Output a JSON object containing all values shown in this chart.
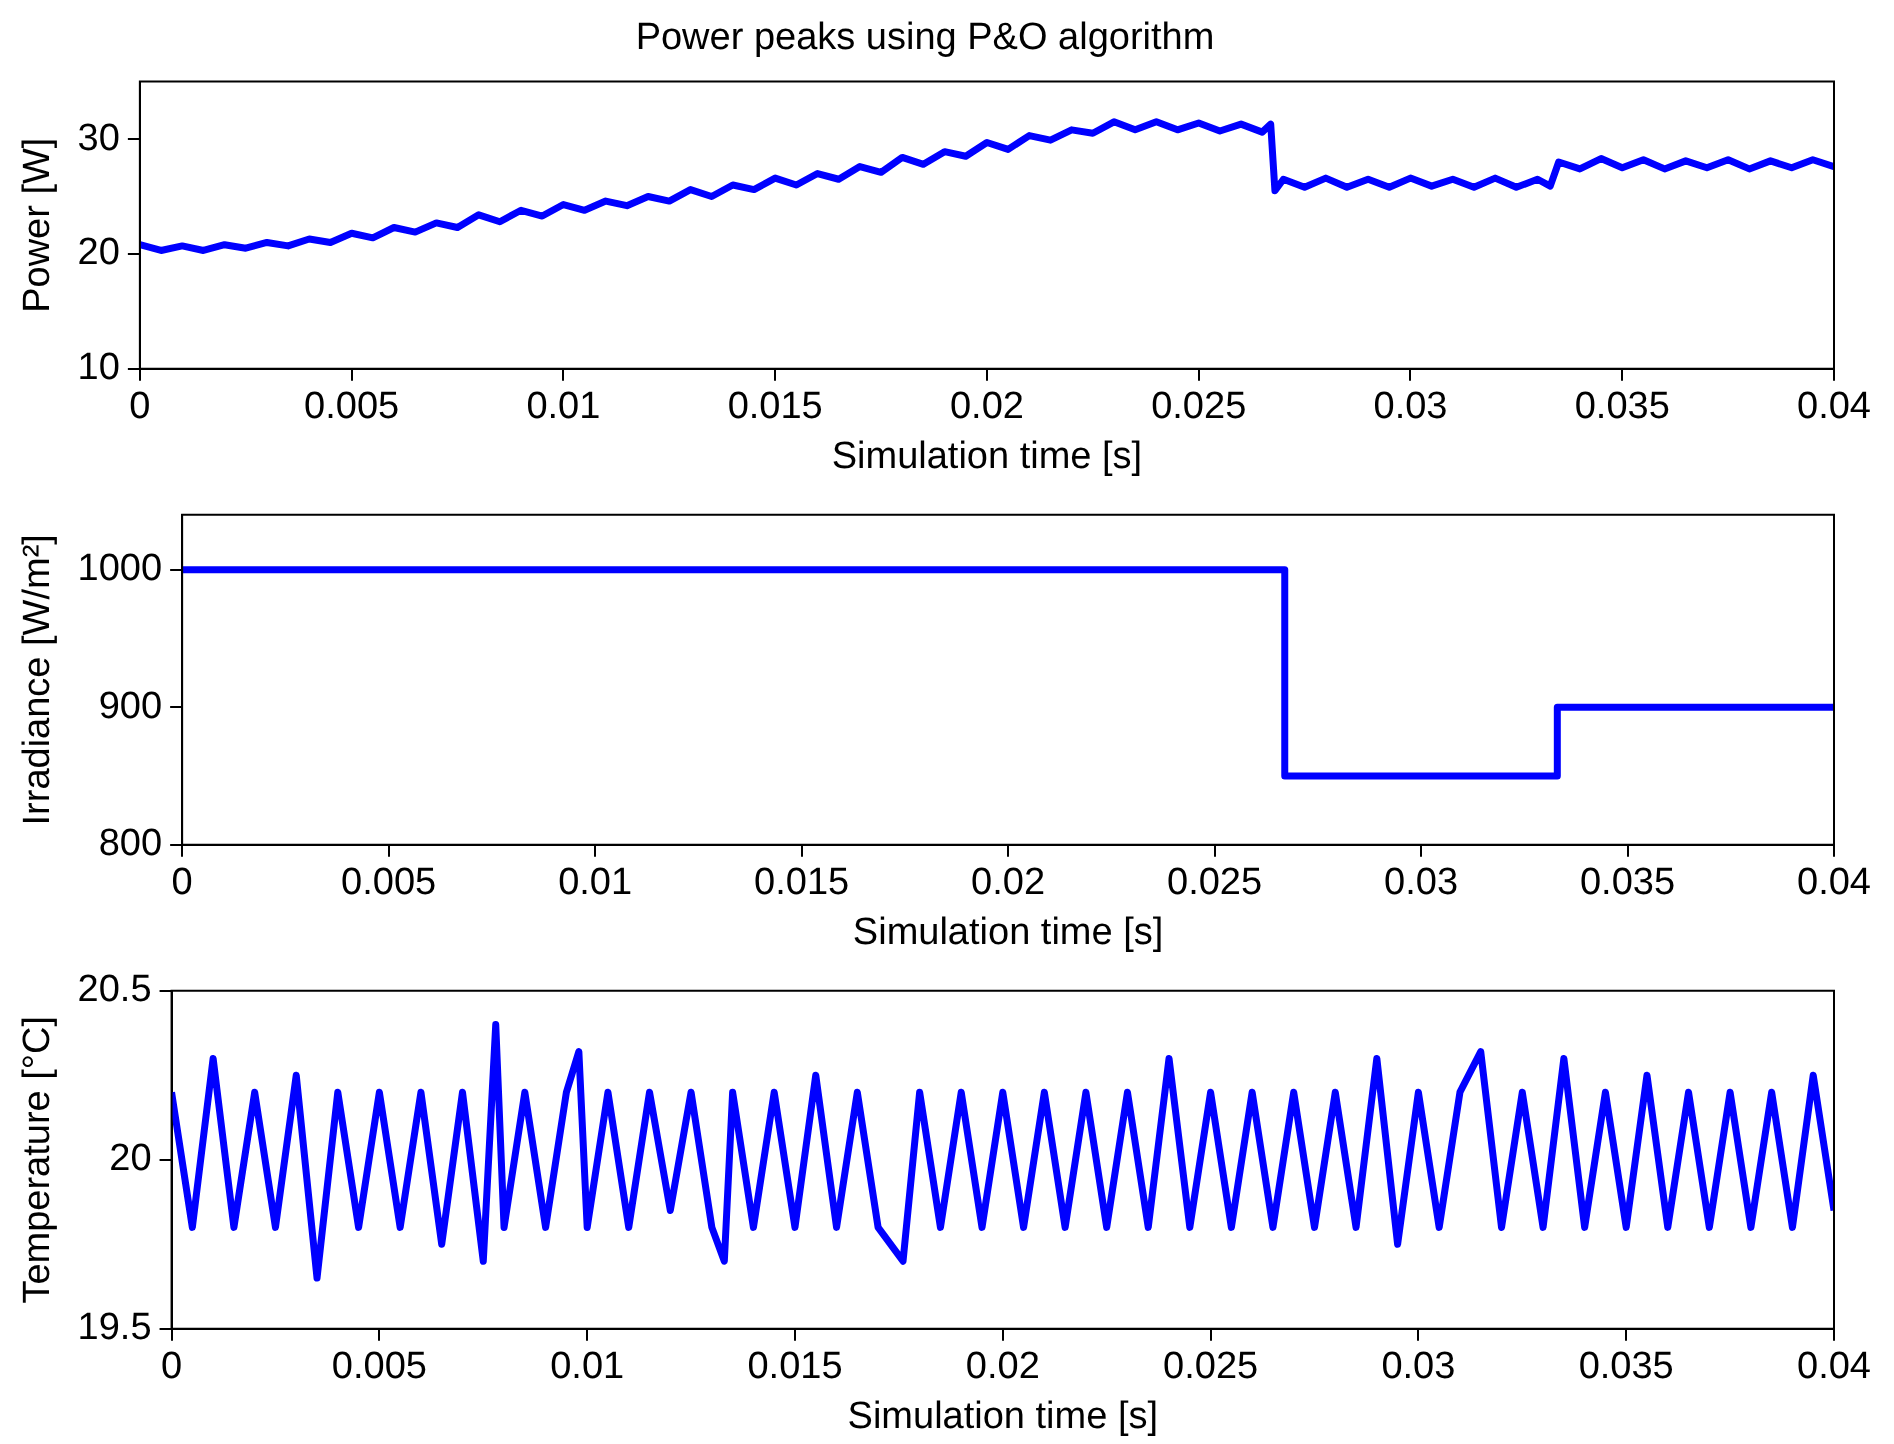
{
  "chart_data": [
    {
      "type": "line",
      "title": "Power peaks using P&O algorithm",
      "xlabel": "Simulation time [s]",
      "ylabel": "Power [W]",
      "xlim": [
        0,
        0.04
      ],
      "xticks": [
        0,
        0.005,
        0.01,
        0.015,
        0.02,
        0.025,
        0.03,
        0.035,
        0.04
      ],
      "ylim": [
        10,
        35
      ],
      "yticks": [
        10,
        20,
        30
      ],
      "grid": false,
      "legend": false,
      "marker": "none",
      "line_style": "solid",
      "series": [
        {
          "color": "#0000ff",
          "x": [
            0,
            0.0005,
            0.001,
            0.0015,
            0.002,
            0.0025,
            0.003,
            0.0035,
            0.004,
            0.0045,
            0.005,
            0.0055,
            0.006,
            0.0065,
            0.007,
            0.0075,
            0.008,
            0.0085,
            0.009,
            0.0095,
            0.01,
            0.0105,
            0.011,
            0.0115,
            0.012,
            0.0125,
            0.013,
            0.0135,
            0.014,
            0.0145,
            0.015,
            0.0155,
            0.016,
            0.0165,
            0.017,
            0.0175,
            0.018,
            0.0185,
            0.019,
            0.0195,
            0.02,
            0.0205,
            0.021,
            0.0215,
            0.022,
            0.0225,
            0.023,
            0.0235,
            0.024,
            0.0245,
            0.025,
            0.0255,
            0.026,
            0.0265,
            0.0267,
            0.0268,
            0.027,
            0.0275,
            0.028,
            0.0285,
            0.029,
            0.0295,
            0.03,
            0.0305,
            0.031,
            0.0315,
            0.032,
            0.0325,
            0.033,
            0.0333,
            0.0335,
            0.034,
            0.0345,
            0.035,
            0.0355,
            0.036,
            0.0365,
            0.037,
            0.0375,
            0.038,
            0.0385,
            0.039,
            0.0395,
            0.04
          ],
          "values": [
            20.8,
            20.3,
            20.7,
            20.3,
            20.8,
            20.5,
            21.0,
            20.7,
            21.3,
            21.0,
            21.8,
            21.4,
            22.3,
            21.9,
            22.7,
            22.3,
            23.4,
            22.8,
            23.8,
            23.3,
            24.3,
            23.8,
            24.6,
            24.2,
            25.0,
            24.6,
            25.6,
            25.0,
            26.0,
            25.6,
            26.6,
            26.0,
            27.0,
            26.5,
            27.6,
            27.1,
            28.4,
            27.8,
            28.9,
            28.5,
            29.7,
            29.1,
            30.3,
            29.9,
            30.8,
            30.5,
            31.5,
            30.8,
            31.5,
            30.8,
            31.4,
            30.7,
            31.3,
            30.6,
            31.3,
            25.5,
            26.5,
            25.8,
            26.6,
            25.8,
            26.5,
            25.8,
            26.6,
            25.9,
            26.5,
            25.8,
            26.6,
            25.8,
            26.5,
            25.9,
            28.0,
            27.4,
            28.3,
            27.5,
            28.2,
            27.4,
            28.1,
            27.5,
            28.2,
            27.4,
            28.1,
            27.5,
            28.2,
            27.6
          ]
        }
      ]
    },
    {
      "type": "line",
      "xlabel": "Simulation time [s]",
      "ylabel": "Irradiance [W/m²]",
      "xlim": [
        0,
        0.04
      ],
      "xticks": [
        0,
        0.005,
        0.01,
        0.015,
        0.02,
        0.025,
        0.03,
        0.035,
        0.04
      ],
      "ylim": [
        800,
        1040
      ],
      "yticks": [
        800,
        900,
        1000
      ],
      "grid": false,
      "legend": false,
      "marker": "none",
      "line_style": "solid",
      "series": [
        {
          "color": "#0000ff",
          "x": [
            0,
            0.0267,
            0.0267,
            0.0333,
            0.0333,
            0.04
          ],
          "values": [
            1000,
            1000,
            850,
            850,
            900,
            900
          ]
        }
      ]
    },
    {
      "type": "line",
      "xlabel": "Simulation time [s]",
      "ylabel": "Temperature [°C]",
      "xlim": [
        0,
        0.04
      ],
      "xticks": [
        0,
        0.005,
        0.01,
        0.015,
        0.02,
        0.025,
        0.03,
        0.035,
        0.04
      ],
      "ylim": [
        19.5,
        20.5
      ],
      "yticks": [
        19.5,
        20,
        20.5
      ],
      "grid": false,
      "legend": false,
      "marker": "none",
      "line_style": "solid",
      "series": [
        {
          "color": "#0000ff",
          "x": [
            0,
            0.0005,
            0.001,
            0.0015,
            0.002,
            0.0025,
            0.003,
            0.0035,
            0.004,
            0.0045,
            0.005,
            0.0055,
            0.006,
            0.0065,
            0.007,
            0.0075,
            0.0078,
            0.008,
            0.0085,
            0.009,
            0.0095,
            0.0098,
            0.01,
            0.0105,
            0.011,
            0.0115,
            0.012,
            0.0125,
            0.013,
            0.0133,
            0.0135,
            0.014,
            0.0145,
            0.015,
            0.0155,
            0.016,
            0.0165,
            0.017,
            0.0176,
            0.018,
            0.0185,
            0.019,
            0.0195,
            0.02,
            0.0205,
            0.021,
            0.0215,
            0.022,
            0.0225,
            0.023,
            0.0235,
            0.024,
            0.0245,
            0.025,
            0.0255,
            0.026,
            0.0265,
            0.027,
            0.0275,
            0.028,
            0.0285,
            0.029,
            0.0295,
            0.03,
            0.0305,
            0.031,
            0.0315,
            0.032,
            0.0325,
            0.033,
            0.0335,
            0.034,
            0.0345,
            0.035,
            0.0355,
            0.036,
            0.0365,
            0.037,
            0.0375,
            0.038,
            0.0385,
            0.039,
            0.0395,
            0.04
          ],
          "values": [
            20.2,
            19.8,
            20.3,
            19.8,
            20.2,
            19.8,
            20.25,
            19.65,
            20.2,
            19.8,
            20.2,
            19.8,
            20.2,
            19.75,
            20.2,
            19.7,
            20.4,
            19.8,
            20.2,
            19.8,
            20.2,
            20.32,
            19.8,
            20.2,
            19.8,
            20.2,
            19.85,
            20.2,
            19.8,
            19.7,
            20.2,
            19.8,
            20.2,
            19.8,
            20.25,
            19.8,
            20.2,
            19.8,
            19.7,
            20.2,
            19.8,
            20.2,
            19.8,
            20.2,
            19.8,
            20.2,
            19.8,
            20.2,
            19.8,
            20.2,
            19.8,
            20.3,
            19.8,
            20.2,
            19.8,
            20.2,
            19.8,
            20.2,
            19.8,
            20.2,
            19.8,
            20.3,
            19.75,
            20.2,
            19.8,
            20.2,
            20.32,
            19.8,
            20.2,
            19.8,
            20.3,
            19.8,
            20.2,
            19.8,
            20.25,
            19.8,
            20.2,
            19.8,
            20.2,
            19.8,
            20.2,
            19.8,
            20.25,
            19.85
          ]
        }
      ]
    }
  ]
}
